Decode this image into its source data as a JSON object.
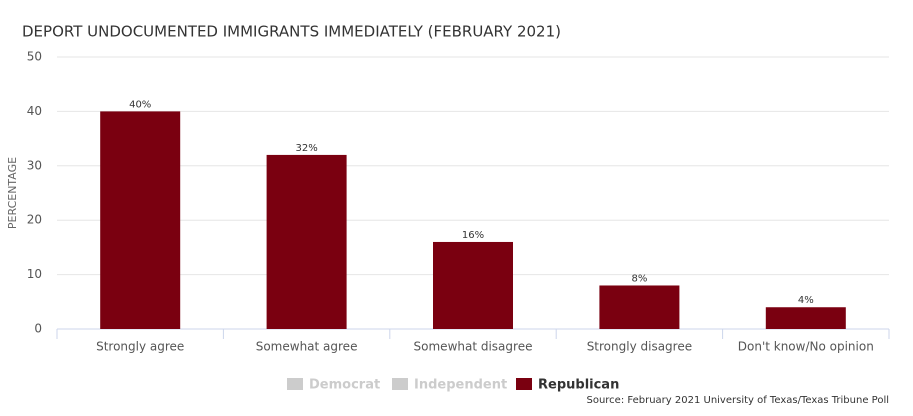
{
  "chart_data": {
    "type": "bar",
    "title": "DEPORT UNDOCUMENTED IMMIGRANTS IMMEDIATELY (FEBRUARY 2021)",
    "y_label": "PERCENTAGE",
    "source": "Source: February 2021 University of Texas/Texas Tribune Poll",
    "categories": [
      "Strongly agree",
      "Somewhat agree",
      "Somewhat disagree",
      "Strongly disagree",
      "Don't know/No opinion"
    ],
    "series": [
      {
        "name": "Democrat",
        "color": "#cccccc",
        "visible": false
      },
      {
        "name": "Independent",
        "color": "#cccccc",
        "visible": false
      },
      {
        "name": "Republican",
        "color": "#7a0010",
        "visible": true,
        "values": [
          40,
          32,
          16,
          8,
          4
        ],
        "value_labels": [
          "40%",
          "32%",
          "16%",
          "8%",
          "4%"
        ]
      }
    ],
    "ylim": [
      0,
      50
    ],
    "yticks": [
      0,
      10,
      20,
      30,
      40,
      50
    ],
    "grid": true
  }
}
